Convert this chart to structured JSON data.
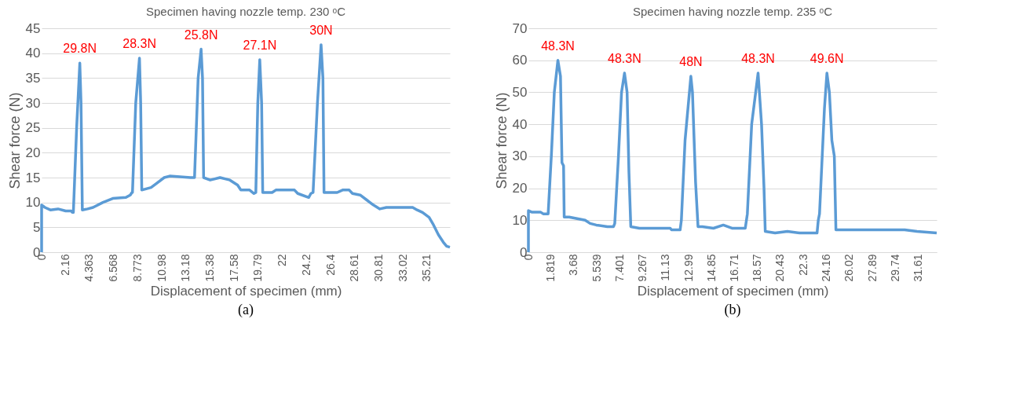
{
  "chart_data": [
    {
      "type": "line",
      "title": "Specimen having nozzle temp. 230 ᵒC",
      "xlabel": "Displacement of specimen (mm)",
      "ylabel": "Shear force (N)",
      "color": "#5b9bd5",
      "grid": "y",
      "x": [
        0,
        0,
        0.3,
        0.8,
        1.5,
        2.2,
        2.7,
        2.8,
        2.9,
        3.2,
        3.49,
        3.6,
        3.72,
        4.2,
        4.7,
        5.6,
        6.5,
        7.7,
        8.1,
        8.25,
        8.3,
        8.6,
        8.94,
        9.05,
        9.15,
        10.0,
        10.6,
        11.2,
        11.7,
        13.6,
        13.97,
        14.3,
        14.57,
        14.7,
        14.8,
        15.4,
        16.3,
        17.2,
        17.9,
        18.2,
        19.0,
        19.4,
        19.57,
        19.75,
        19.93,
        20.1,
        20.2,
        21.06,
        21.4,
        23.1,
        23.4,
        24.4,
        24.6,
        24.8,
        25.2,
        25.53,
        25.7,
        25.8,
        27.0,
        27.5,
        28.1,
        28.4,
        29.1,
        29.7,
        30.3,
        30.9,
        31.5,
        33.9,
        34.3,
        34.8,
        35.4,
        35.8,
        36.25,
        36.7,
        37.0,
        37.3
      ],
      "values": [
        0,
        9.5,
        9,
        8.5,
        8.7,
        8.3,
        8.3,
        8,
        8,
        25,
        38,
        30,
        8.5,
        8.7,
        9,
        10,
        10.8,
        11,
        11.5,
        12,
        12,
        30,
        39,
        30,
        12.5,
        13,
        14,
        15,
        15.3,
        15,
        15,
        35,
        40.8,
        35,
        15,
        14.5,
        15,
        14.5,
        13.5,
        12.5,
        12.5,
        11.8,
        12,
        30,
        38.7,
        30,
        12,
        12,
        12.5,
        12.5,
        11.8,
        11,
        11.8,
        12,
        30,
        41.7,
        35,
        12,
        12,
        12.5,
        12.5,
        11.8,
        11.5,
        10.5,
        9.5,
        8.7,
        9,
        9,
        8.5,
        8,
        7,
        5.5,
        3.5,
        2,
        1.2,
        1
      ],
      "xlim": [
        0,
        37.3
      ],
      "xticks": [
        0,
        2.16,
        4.363,
        6.568,
        8.773,
        10.98,
        13.18,
        15.38,
        17.58,
        19.79,
        22,
        24.2,
        26.4,
        28.61,
        30.81,
        33.02,
        35.21
      ],
      "ylim": [
        0,
        45
      ],
      "yticks": [
        0,
        5,
        10,
        15,
        20,
        25,
        30,
        35,
        40,
        45
      ],
      "annotations": [
        {
          "text": "29.8N",
          "x": 3.49,
          "y": 38
        },
        {
          "text": "28.3N",
          "x": 8.94,
          "y": 39
        },
        {
          "text": "25.8N",
          "x": 14.57,
          "y": 40.8
        },
        {
          "text": "27.1N",
          "x": 19.93,
          "y": 38.7
        },
        {
          "text": "30N",
          "x": 25.53,
          "y": 41.7
        },
        "(a)"
      ]
    },
    {
      "type": "line",
      "title": "Specimen having nozzle temp. 235 ᵒC",
      "xlabel": "Displacement of specimen (mm)",
      "ylabel": "Shear force (N)",
      "color": "#5b9bd5",
      "grid": "y",
      "x": [
        0,
        0,
        0.3,
        1.0,
        1.2,
        1.6,
        1.87,
        2.1,
        2.39,
        2.6,
        2.72,
        2.85,
        2.9,
        3.3,
        4.6,
        5.0,
        5.5,
        6.4,
        6.9,
        7.0,
        7.3,
        7.55,
        7.79,
        8.0,
        8.15,
        8.3,
        9.0,
        11.5,
        11.6,
        12.3,
        12.4,
        12.7,
        13.17,
        13.3,
        13.55,
        13.75,
        14.1,
        15.0,
        15.8,
        16.5,
        17.58,
        17.75,
        18.1,
        18.62,
        18.9,
        19.1,
        19.2,
        20.0,
        21.0,
        22.0,
        23.4,
        23.5,
        23.6,
        24.0,
        24.2,
        24.4,
        24.6,
        24.8,
        24.93,
        30.5,
        31.5,
        33.1
      ],
      "values": [
        0,
        13,
        12.5,
        12.5,
        12,
        12,
        31,
        50,
        60,
        55,
        28,
        27,
        11,
        11,
        10,
        9,
        8.5,
        8,
        8,
        9,
        30,
        50,
        56,
        50,
        25,
        8,
        7.5,
        7.5,
        7,
        7,
        10,
        35,
        55,
        50,
        22,
        8,
        8,
        7.5,
        8.5,
        7.5,
        7.5,
        12,
        40,
        56,
        40,
        20,
        6.5,
        6,
        6.5,
        6,
        6,
        10,
        12,
        45,
        56,
        50,
        35,
        30,
        7,
        7,
        6.5,
        6
      ],
      "xlim": [
        0,
        33.1
      ],
      "xticks": [
        0,
        1.819,
        3.68,
        5.539,
        7.401,
        9.267,
        11.13,
        12.99,
        14.85,
        16.71,
        18.57,
        20.43,
        22.3,
        24.16,
        26.02,
        27.89,
        29.74,
        31.61
      ],
      "ylim": [
        0,
        70
      ],
      "yticks": [
        0,
        10,
        20,
        30,
        40,
        50,
        60,
        70
      ],
      "annotations": [
        {
          "text": "48.3N",
          "x": 2.39,
          "y": 60
        },
        {
          "text": "48.3N",
          "x": 7.79,
          "y": 56
        },
        {
          "text": "48N",
          "x": 13.17,
          "y": 55
        },
        {
          "text": "48.3N",
          "x": 18.62,
          "y": 56
        },
        {
          "text": "49.6N",
          "x": 24.2,
          "y": 56
        },
        "(b)"
      ]
    }
  ]
}
